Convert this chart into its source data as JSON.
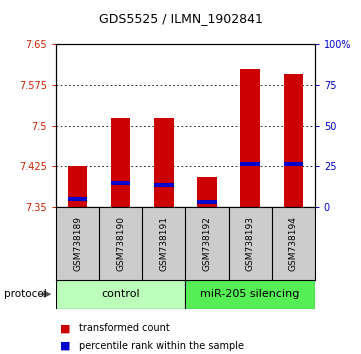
{
  "title": "GDS5525 / ILMN_1902841",
  "samples": [
    "GSM738189",
    "GSM738190",
    "GSM738191",
    "GSM738192",
    "GSM738193",
    "GSM738194"
  ],
  "red_values": [
    7.425,
    7.515,
    7.515,
    7.405,
    7.605,
    7.595
  ],
  "blue_values": [
    7.365,
    7.395,
    7.39,
    7.36,
    7.43,
    7.43
  ],
  "ymin": 7.35,
  "ymax": 7.65,
  "yticks": [
    7.35,
    7.425,
    7.5,
    7.575,
    7.65
  ],
  "right_yticks": [
    0,
    25,
    50,
    75,
    100
  ],
  "right_yticklabels": [
    "0",
    "25",
    "50",
    "75",
    "100%"
  ],
  "bar_color": "#cc0000",
  "blue_color": "#0000cc",
  "bar_width": 0.45,
  "background_color": "#ffffff",
  "tick_label_color_left": "#cc2200",
  "tick_label_color_right": "#0000cc",
  "legend_items": [
    {
      "label": "transformed count",
      "color": "#cc0000"
    },
    {
      "label": "percentile rank within the sample",
      "color": "#0000cc"
    }
  ],
  "protocol_label": "protocol",
  "xlabel_bg": "#cccccc",
  "group1_color": "#bbffbb",
  "group2_color": "#55ee55",
  "group1_label": "control",
  "group2_label": "miR-205 silencing"
}
